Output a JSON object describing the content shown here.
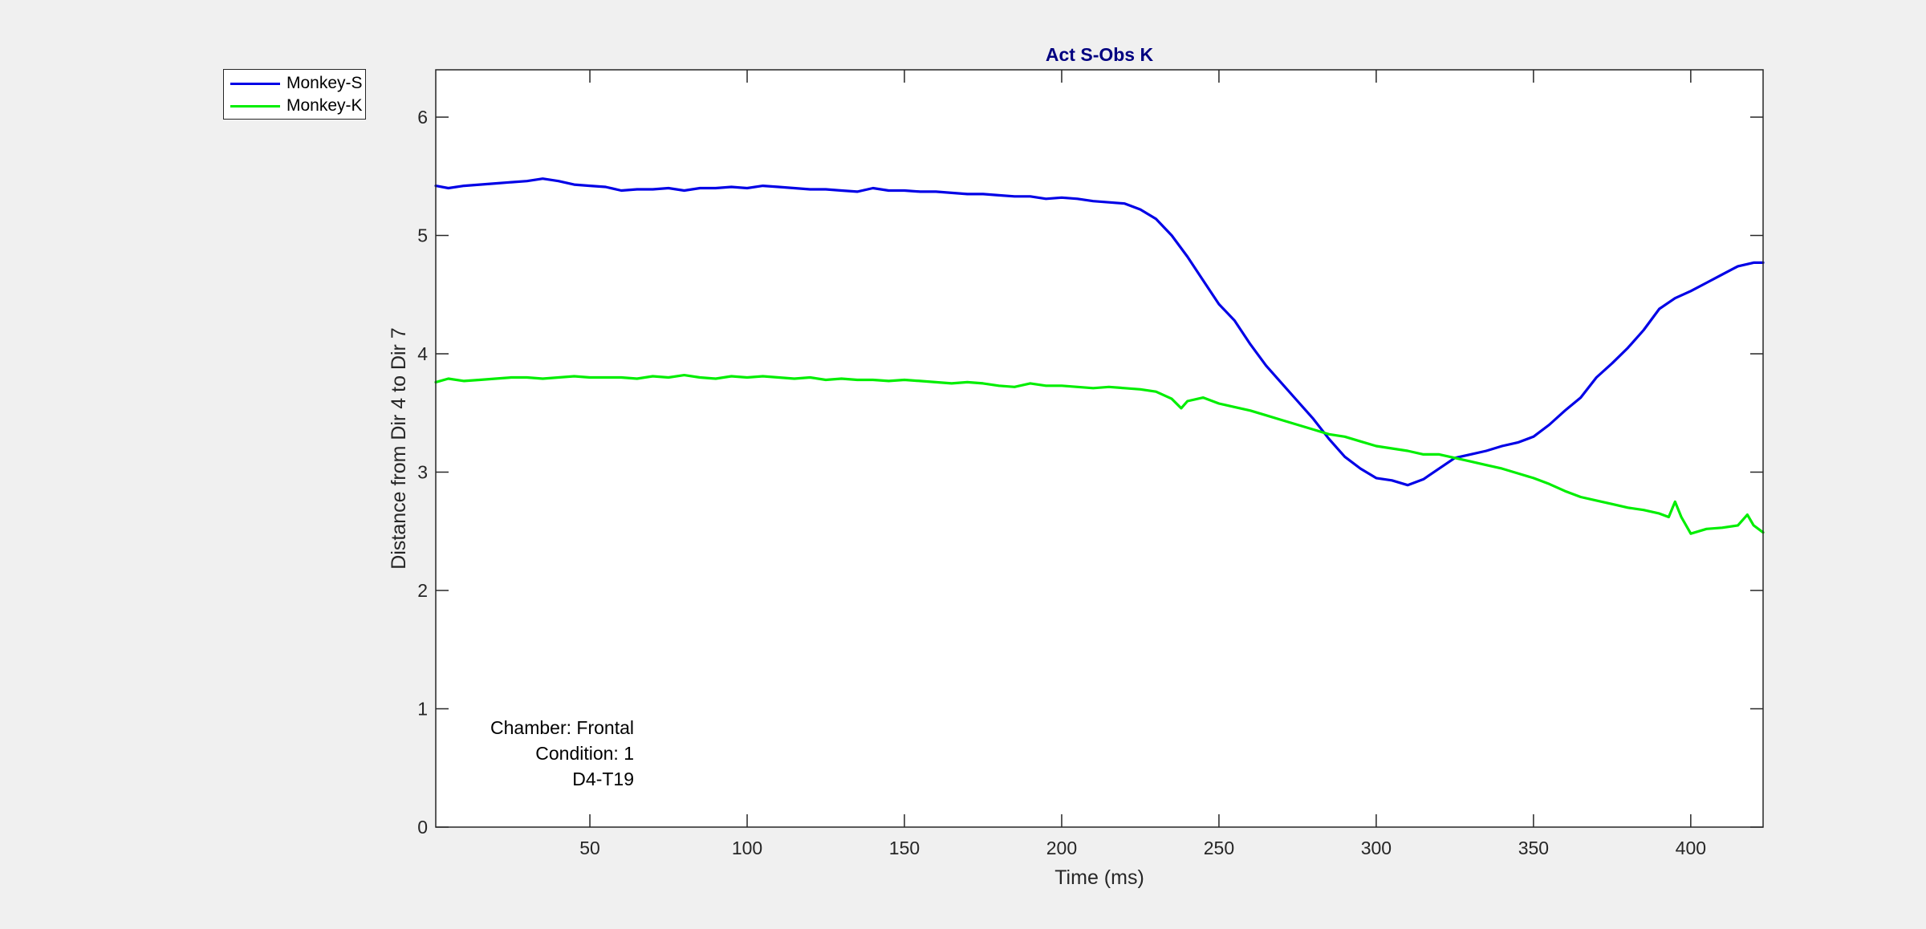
{
  "chart_data": {
    "type": "line",
    "title": "Act S-Obs K",
    "xlabel": "Time (ms)",
    "ylabel": "Distance from Dir 4 to Dir 7",
    "xlim": [
      1,
      423
    ],
    "ylim": [
      0,
      6.4
    ],
    "xticks": [
      50,
      100,
      150,
      200,
      250,
      300,
      350,
      400
    ],
    "yticks": [
      0,
      1,
      2,
      3,
      4,
      5,
      6
    ],
    "grid": false,
    "legend_position": "outside-top-left",
    "annotations": [
      "Chamber: Frontal",
      "Condition: 1",
      "D4-T19"
    ],
    "colors": {
      "title": "#000080",
      "Monkey-S": "#0000e6",
      "Monkey-K": "#00ee00"
    },
    "series": [
      {
        "name": "Monkey-S",
        "color": "#0000e6",
        "x": [
          1,
          5,
          10,
          15,
          20,
          25,
          30,
          35,
          40,
          45,
          50,
          55,
          60,
          65,
          70,
          75,
          80,
          85,
          90,
          95,
          100,
          105,
          110,
          115,
          120,
          125,
          130,
          135,
          140,
          145,
          150,
          155,
          160,
          165,
          170,
          175,
          180,
          185,
          190,
          195,
          200,
          205,
          210,
          215,
          220,
          225,
          230,
          235,
          240,
          245,
          250,
          255,
          260,
          265,
          270,
          275,
          280,
          285,
          290,
          295,
          300,
          305,
          310,
          315,
          320,
          325,
          330,
          335,
          340,
          345,
          350,
          355,
          360,
          365,
          370,
          375,
          380,
          385,
          390,
          395,
          400,
          405,
          410,
          415,
          420,
          423
        ],
        "y": [
          5.42,
          5.4,
          5.42,
          5.43,
          5.44,
          5.45,
          5.46,
          5.48,
          5.46,
          5.43,
          5.42,
          5.41,
          5.38,
          5.39,
          5.39,
          5.4,
          5.38,
          5.4,
          5.4,
          5.41,
          5.4,
          5.42,
          5.41,
          5.4,
          5.39,
          5.39,
          5.38,
          5.37,
          5.4,
          5.38,
          5.38,
          5.37,
          5.37,
          5.36,
          5.35,
          5.35,
          5.34,
          5.33,
          5.33,
          5.31,
          5.32,
          5.31,
          5.29,
          5.28,
          5.27,
          5.22,
          5.14,
          5.0,
          4.82,
          4.62,
          4.42,
          4.28,
          4.08,
          3.9,
          3.75,
          3.6,
          3.45,
          3.28,
          3.13,
          3.03,
          2.95,
          2.93,
          2.89,
          2.94,
          3.03,
          3.12,
          3.15,
          3.18,
          3.22,
          3.25,
          3.3,
          3.4,
          3.52,
          3.63,
          3.8,
          3.92,
          4.05,
          4.2,
          4.38,
          4.47,
          4.53,
          4.6,
          4.67,
          4.74,
          4.77,
          4.77
        ]
      },
      {
        "name": "Monkey-K",
        "color": "#00ee00",
        "x": [
          1,
          5,
          10,
          15,
          20,
          25,
          30,
          35,
          40,
          45,
          50,
          55,
          60,
          65,
          70,
          75,
          80,
          85,
          90,
          95,
          100,
          105,
          110,
          115,
          120,
          125,
          130,
          135,
          140,
          145,
          150,
          155,
          160,
          165,
          170,
          175,
          180,
          185,
          190,
          195,
          200,
          205,
          210,
          215,
          220,
          225,
          230,
          235,
          238,
          240,
          245,
          250,
          255,
          260,
          265,
          270,
          275,
          280,
          285,
          290,
          295,
          300,
          305,
          310,
          315,
          320,
          325,
          330,
          335,
          340,
          345,
          350,
          355,
          360,
          365,
          370,
          375,
          380,
          385,
          390,
          393,
          395,
          397,
          400,
          405,
          410,
          415,
          418,
          420,
          423
        ],
        "y": [
          3.76,
          3.79,
          3.77,
          3.78,
          3.79,
          3.8,
          3.8,
          3.79,
          3.8,
          3.81,
          3.8,
          3.8,
          3.8,
          3.79,
          3.81,
          3.8,
          3.82,
          3.8,
          3.79,
          3.81,
          3.8,
          3.81,
          3.8,
          3.79,
          3.8,
          3.78,
          3.79,
          3.78,
          3.78,
          3.77,
          3.78,
          3.77,
          3.76,
          3.75,
          3.76,
          3.75,
          3.73,
          3.72,
          3.75,
          3.73,
          3.73,
          3.72,
          3.71,
          3.72,
          3.71,
          3.7,
          3.68,
          3.62,
          3.54,
          3.6,
          3.63,
          3.58,
          3.55,
          3.52,
          3.48,
          3.44,
          3.4,
          3.36,
          3.32,
          3.3,
          3.26,
          3.22,
          3.2,
          3.18,
          3.15,
          3.15,
          3.12,
          3.09,
          3.06,
          3.03,
          2.99,
          2.95,
          2.9,
          2.84,
          2.79,
          2.76,
          2.73,
          2.7,
          2.68,
          2.65,
          2.62,
          2.75,
          2.62,
          2.48,
          2.52,
          2.53,
          2.55,
          2.64,
          2.55,
          2.49
        ]
      }
    ]
  }
}
